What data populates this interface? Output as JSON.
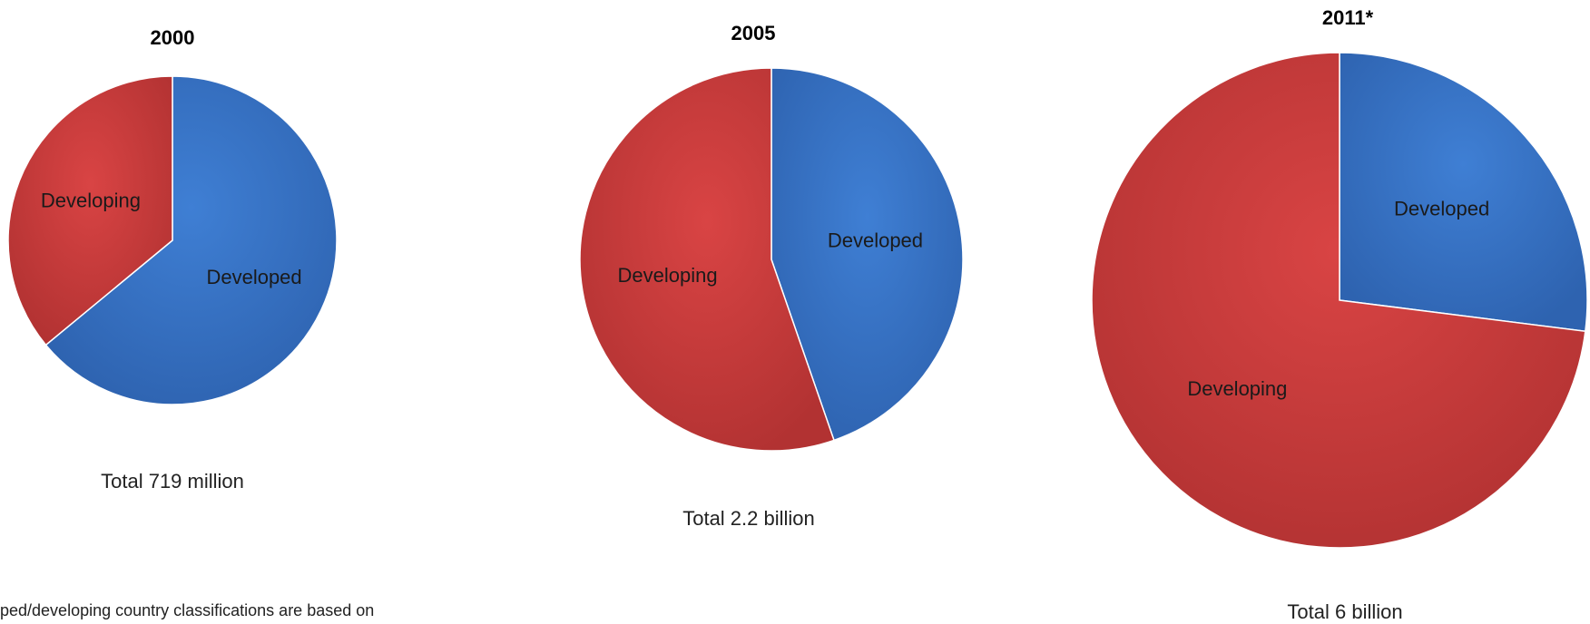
{
  "colors": {
    "developed": "#3f7fd4",
    "developed_dark": "#2e63b0",
    "developing": "#d94444",
    "developing_dark": "#b23232"
  },
  "chart_data": [
    {
      "type": "pie",
      "title": "2000",
      "total_label": "Total  719 million",
      "slices": [
        {
          "label": "Developed",
          "share": 0.64
        },
        {
          "label": "Developing",
          "share": 0.36
        }
      ]
    },
    {
      "type": "pie",
      "title": "2005",
      "total_label": "Total  2.2 billion",
      "slices": [
        {
          "label": "Developed",
          "share": 0.447
        },
        {
          "label": "Developing",
          "share": 0.553
        }
      ]
    },
    {
      "type": "pie",
      "title": "2011*",
      "total_label": "Total  6 billion",
      "slices": [
        {
          "label": "Developed",
          "share": 0.27
        },
        {
          "label": "Developing",
          "share": 0.73
        }
      ]
    }
  ],
  "footnote": "ped/developing country classifications are based on"
}
